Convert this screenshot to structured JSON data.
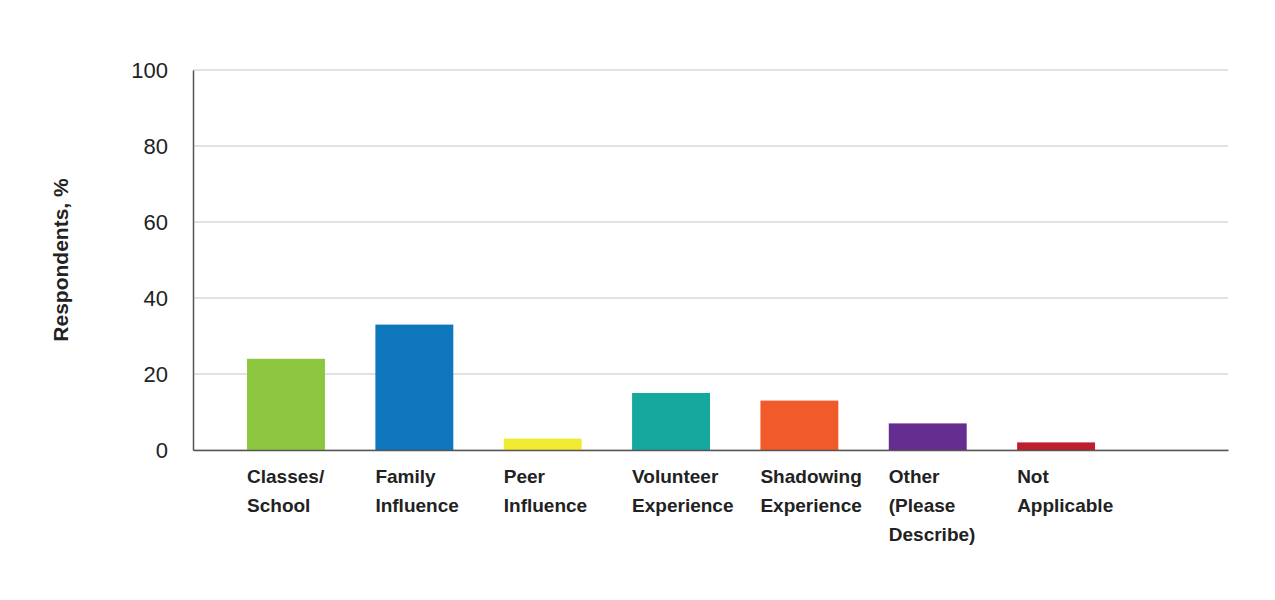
{
  "chart_data": {
    "type": "bar",
    "y_label": "Respondents, %",
    "categories": [
      "Classes/ School",
      "Family Influence",
      "Peer Influence",
      "Volunteer Experience",
      "Shadowing Experience",
      "Other (Please Describe)",
      "Not Applicable"
    ],
    "values": [
      24,
      33,
      3,
      15,
      13,
      7,
      2
    ],
    "colors": [
      "#8dc63f",
      "#0e76bc",
      "#f1ea33",
      "#15a89e",
      "#f15a2b",
      "#662d91",
      "#be1e2d"
    ],
    "ylim": [
      0,
      100
    ],
    "yticks": [
      0,
      20,
      40,
      60,
      80,
      100
    ],
    "grid": true
  }
}
